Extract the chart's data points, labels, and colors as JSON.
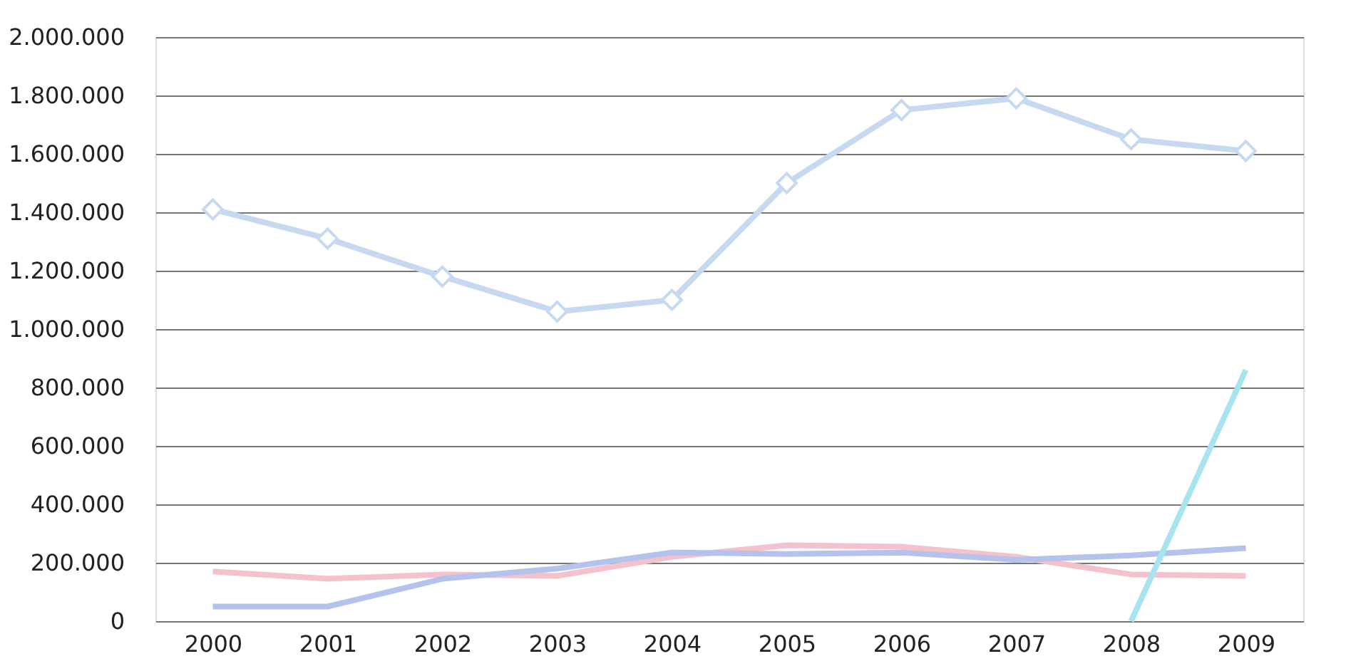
{
  "chart_data": {
    "type": "line",
    "categories": [
      "2000",
      "2001",
      "2002",
      "2003",
      "2004",
      "2005",
      "2006",
      "2007",
      "2008",
      "2009"
    ],
    "series": [
      {
        "color": "#c6d9f1",
        "marker": "diamond",
        "values": [
          1410000,
          1310000,
          1180000,
          1060000,
          1100000,
          1500000,
          1750000,
          1790000,
          1650000,
          1610000
        ]
      },
      {
        "color": "#f4c2cc",
        "marker": "none",
        "values": [
          170000,
          145000,
          160000,
          155000,
          220000,
          260000,
          255000,
          220000,
          160000,
          155000
        ]
      },
      {
        "color": "#b4c2ec",
        "marker": "none",
        "values": [
          50000,
          50000,
          145000,
          180000,
          235000,
          230000,
          235000,
          210000,
          225000,
          250000
        ]
      },
      {
        "color": "#a8e4f0",
        "marker": "none",
        "values": [
          null,
          null,
          null,
          null,
          null,
          null,
          null,
          null,
          0,
          860000
        ]
      }
    ],
    "ylim": [
      0,
      2000000
    ],
    "yticks": [
      {
        "value": 0,
        "label": "0"
      },
      {
        "value": 200000,
        "label": "200.000"
      },
      {
        "value": 400000,
        "label": "400.000"
      },
      {
        "value": 600000,
        "label": "600.000"
      },
      {
        "value": 800000,
        "label": "800.000"
      },
      {
        "value": 1000000,
        "label": "1.000.000"
      },
      {
        "value": 1200000,
        "label": "1.200.000"
      },
      {
        "value": 1400000,
        "label": "1.400.000"
      },
      {
        "value": 1600000,
        "label": "1.600.000"
      },
      {
        "value": 1800000,
        "label": "1.800.000"
      },
      {
        "value": 2000000,
        "label": "2.000.000"
      }
    ],
    "grid": "y",
    "legend": false,
    "line_style": "solid"
  }
}
